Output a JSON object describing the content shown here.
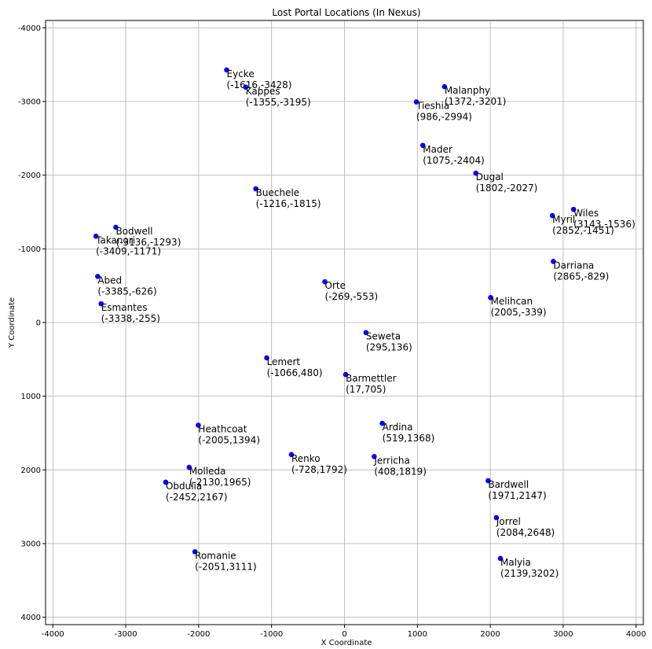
{
  "chart_data": {
    "type": "scatter",
    "title": "Lost Portal Locations (In Nexus)",
    "xlabel": "X Coordinate",
    "ylabel": "Y Coordinate",
    "xlim": [
      -4100,
      4100
    ],
    "ylim": [
      4100,
      -4100
    ],
    "y_inverted": true,
    "grid": true,
    "marker_color": "#0000ff",
    "x_ticks": [
      -4000,
      -3000,
      -2000,
      -1000,
      0,
      1000,
      2000,
      3000,
      4000
    ],
    "y_ticks": [
      -4000,
      -3000,
      -2000,
      -1000,
      0,
      1000,
      2000,
      3000,
      4000
    ],
    "points": [
      {
        "name": "Eycke",
        "label": "(-1616,-3428)",
        "x": -1616,
        "y": -3428
      },
      {
        "name": "Kappes",
        "label": "(-1355,-3195)",
        "x": -1355,
        "y": -3195
      },
      {
        "name": "Malanphy",
        "label": "(1372,-3201)",
        "x": 1372,
        "y": -3201
      },
      {
        "name": "Tieshia",
        "label": "(986,-2994)",
        "x": 986,
        "y": -2994
      },
      {
        "name": "Mader",
        "label": "(1075,-2404)",
        "x": 1075,
        "y": -2404
      },
      {
        "name": "Dugal",
        "label": "(1802,-2027)",
        "x": 1802,
        "y": -2027
      },
      {
        "name": "Buechele",
        "label": "(-1216,-1815)",
        "x": -1216,
        "y": -1815
      },
      {
        "name": "Wiles",
        "label": "(3143,-1536)",
        "x": 3143,
        "y": -1536
      },
      {
        "name": "Myril",
        "label": "(2852,-1451)",
        "x": 2852,
        "y": -1451
      },
      {
        "name": "Bodwell",
        "label": "(-3136,-1293)",
        "x": -3136,
        "y": -1293
      },
      {
        "name": "Takanori",
        "label": "(-3409,-1171)",
        "x": -3409,
        "y": -1171
      },
      {
        "name": "Darriana",
        "label": "(2865,-829)",
        "x": 2865,
        "y": -829
      },
      {
        "name": "Abed",
        "label": "(-3385,-626)",
        "x": -3385,
        "y": -626
      },
      {
        "name": "Orte",
        "label": "(-269,-553)",
        "x": -269,
        "y": -553
      },
      {
        "name": "Melihcan",
        "label": "(2005,-339)",
        "x": 2005,
        "y": -339
      },
      {
        "name": "Esmantes",
        "label": "(-3338,-255)",
        "x": -3338,
        "y": -255
      },
      {
        "name": "Seweta",
        "label": "(295,136)",
        "x": 295,
        "y": 136
      },
      {
        "name": "Lemert",
        "label": "(-1066,480)",
        "x": -1066,
        "y": 480
      },
      {
        "name": "Barmettler",
        "label": "(17,705)",
        "x": 17,
        "y": 705
      },
      {
        "name": "Heathcoat",
        "label": "(-2005,1394)",
        "x": -2005,
        "y": 1394
      },
      {
        "name": "Ardina",
        "label": "(519,1368)",
        "x": 519,
        "y": 1368
      },
      {
        "name": "Renko",
        "label": "(-728,1792)",
        "x": -728,
        "y": 1792
      },
      {
        "name": "Jerricha",
        "label": "(408,1819)",
        "x": 408,
        "y": 1819
      },
      {
        "name": "Molleda",
        "label": "(-2130,1965)",
        "x": -2130,
        "y": 1965
      },
      {
        "name": "Obdulia",
        "label": "(-2452,2167)",
        "x": -2452,
        "y": 2167
      },
      {
        "name": "Bardwell",
        "label": "(1971,2147)",
        "x": 1971,
        "y": 2147
      },
      {
        "name": "Jorrel",
        "label": "(2084,2648)",
        "x": 2084,
        "y": 2648
      },
      {
        "name": "Romanie",
        "label": "(-2051,3111)",
        "x": -2051,
        "y": 3111
      },
      {
        "name": "Malyia",
        "label": "(2139,3202)",
        "x": 2139,
        "y": 3202
      }
    ]
  }
}
